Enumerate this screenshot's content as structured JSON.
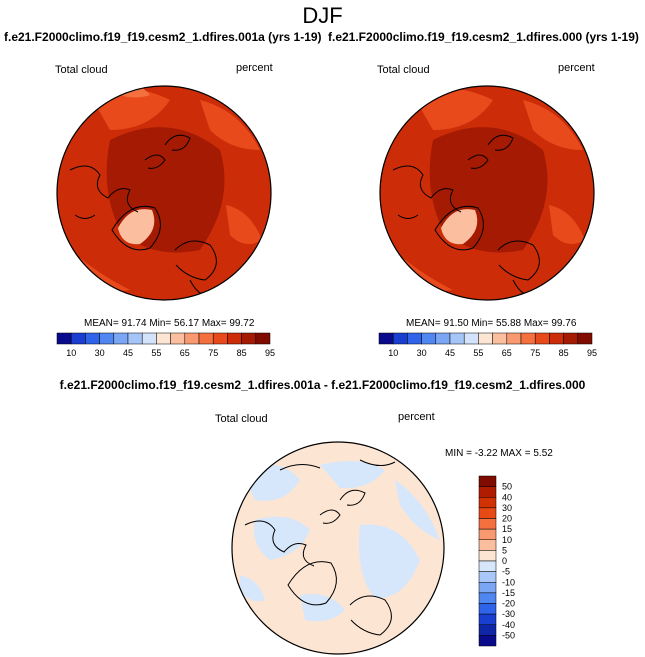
{
  "figure": {
    "season": "DJF"
  },
  "panel_a": {
    "title": "f.e21.F2000climo.f19_f19.cesm2_1.dfires.001a (yrs 1-19)",
    "variable": "Total cloud",
    "units": "percent",
    "stats": "MEAN=  91.74  Min=  56.17  Max=  99.72"
  },
  "panel_b": {
    "title": "f.e21.F2000climo.f19_f19.cesm2_1.dfires.000 (yrs 1-19)",
    "variable": "Total cloud",
    "units": "percent",
    "stats": "MEAN=  91.50  Min=  55.88  Max=  99.76"
  },
  "panel_diff": {
    "title": "f.e21.F2000climo.f19_f19.cesm2_1.dfires.001a - f.e21.F2000climo.f19_f19.cesm2_1.dfires.000",
    "variable": "Total cloud",
    "units": "percent",
    "stats": "MIN =  -3.22 MAX =   5.52"
  },
  "colorbar_abs": {
    "labels": [
      "10",
      "30",
      "45",
      "55",
      "65",
      "75",
      "85",
      "95"
    ],
    "colors": [
      "#0a0a8c",
      "#1a3fd0",
      "#2f63ea",
      "#4f86f0",
      "#7aa6f4",
      "#a5c4f8",
      "#d3e3fb",
      "#fde5d3",
      "#fbbfa0",
      "#f8996f",
      "#f4703f",
      "#e94a1c",
      "#cc2d08",
      "#a51a03",
      "#800c00"
    ]
  },
  "colorbar_diff": {
    "labels": [
      "50",
      "40",
      "30",
      "20",
      "15",
      "10",
      "5",
      "0",
      "-5",
      "-10",
      "-15",
      "-20",
      "-30",
      "-40",
      "-50"
    ],
    "colors": [
      "#800c00",
      "#b01c02",
      "#d03204",
      "#e84a16",
      "#f4703f",
      "#f8996f",
      "#fbbfa0",
      "#fde5d3",
      "#d6e7fb",
      "#a9c7f8",
      "#7aa6f4",
      "#4f86f0",
      "#2f63ea",
      "#1a3fd0",
      "#0f26a8",
      "#0a0a8c"
    ]
  },
  "map_colors": {
    "ocean_outline": "#000000",
    "cloud_high": "#a51a03",
    "cloud_mid": "#cc2d08",
    "cloud_low": "#e94a1c",
    "cloud_lower": "#f4703f",
    "cloud_min": "#fbbfa0",
    "diff_pos": "#fde5d3",
    "diff_neg": "#d6e7fb"
  }
}
